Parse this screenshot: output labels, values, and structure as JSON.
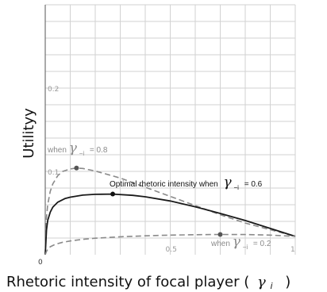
{
  "chart_data": {
    "type": "line",
    "xlabel": "Rhetoric intensity of focal player (",
    "xlabel_symbol": "γ",
    "xlabel_subscript": "i",
    "xlabel_close": ")",
    "ylabel": "Utilityy",
    "xlim": [
      0,
      1
    ],
    "ylim": [
      0,
      0.3
    ],
    "grid": true,
    "x_tick_labels": [
      {
        "label": "0",
        "x": 0
      },
      {
        "label": "0.5",
        "x": 0.5
      },
      {
        "label": "1",
        "x": 1
      }
    ],
    "y_tick_labels": [
      {
        "label": "0.2",
        "y": 0.2
      },
      {
        "label": "0.1",
        "y": 0.1
      }
    ],
    "series": [
      {
        "style": "dashed",
        "color": "#8a8a8a",
        "x": [
          0,
          0.005,
          0.01,
          0.02,
          0.03,
          0.05,
          0.07,
          0.1,
          0.125,
          0.15,
          0.2,
          0.3,
          0.4,
          0.5,
          0.6,
          0.7,
          0.8,
          0.9,
          1.0
        ],
        "y": [
          0,
          0.045,
          0.06,
          0.076,
          0.085,
          0.095,
          0.1,
          0.103,
          0.104,
          0.1035,
          0.1005,
          0.092,
          0.081,
          0.07,
          0.059,
          0.048,
          0.038,
          0.03,
          0.022
        ],
        "marker": {
          "x": 0.125,
          "y": 0.104
        },
        "annotation": {
          "prefix": "when",
          "symbol": "γ",
          "subscript": "−i",
          "suffix": "= 0.8"
        }
      },
      {
        "style": "solid",
        "color": "#1a1a1a",
        "x": [
          0,
          0.005,
          0.01,
          0.02,
          0.03,
          0.05,
          0.08,
          0.1,
          0.15,
          0.2,
          0.27,
          0.35,
          0.4,
          0.5,
          0.6,
          0.7,
          0.8,
          0.9,
          1.0
        ],
        "y": [
          0,
          0.03,
          0.041,
          0.051,
          0.057,
          0.063,
          0.0675,
          0.069,
          0.0715,
          0.0725,
          0.0728,
          0.0712,
          0.0695,
          0.0645,
          0.0575,
          0.0495,
          0.041,
          0.0315,
          0.022
        ],
        "marker": {
          "x": 0.27,
          "y": 0.0728
        },
        "annotation": {
          "prefix": "Optimal rhetoric intensity when",
          "symbol": "γ",
          "subscript": "−i",
          "suffix": "= 0.6"
        }
      },
      {
        "style": "dashed",
        "color": "#8a8a8a",
        "x": [
          0,
          0.005,
          0.01,
          0.02,
          0.04,
          0.07,
          0.1,
          0.15,
          0.2,
          0.3,
          0.4,
          0.5,
          0.6,
          0.7,
          0.8,
          0.9,
          1.0
        ],
        "y": [
          0,
          0.004,
          0.0065,
          0.0095,
          0.0125,
          0.015,
          0.0165,
          0.0185,
          0.0198,
          0.0215,
          0.0227,
          0.0235,
          0.024,
          0.0243,
          0.0242,
          0.0235,
          0.022
        ],
        "marker": {
          "x": 0.7,
          "y": 0.0243
        },
        "annotation": {
          "prefix": "when",
          "symbol": "γ",
          "subscript": "−i",
          "suffix": "= 0.2"
        }
      }
    ]
  }
}
